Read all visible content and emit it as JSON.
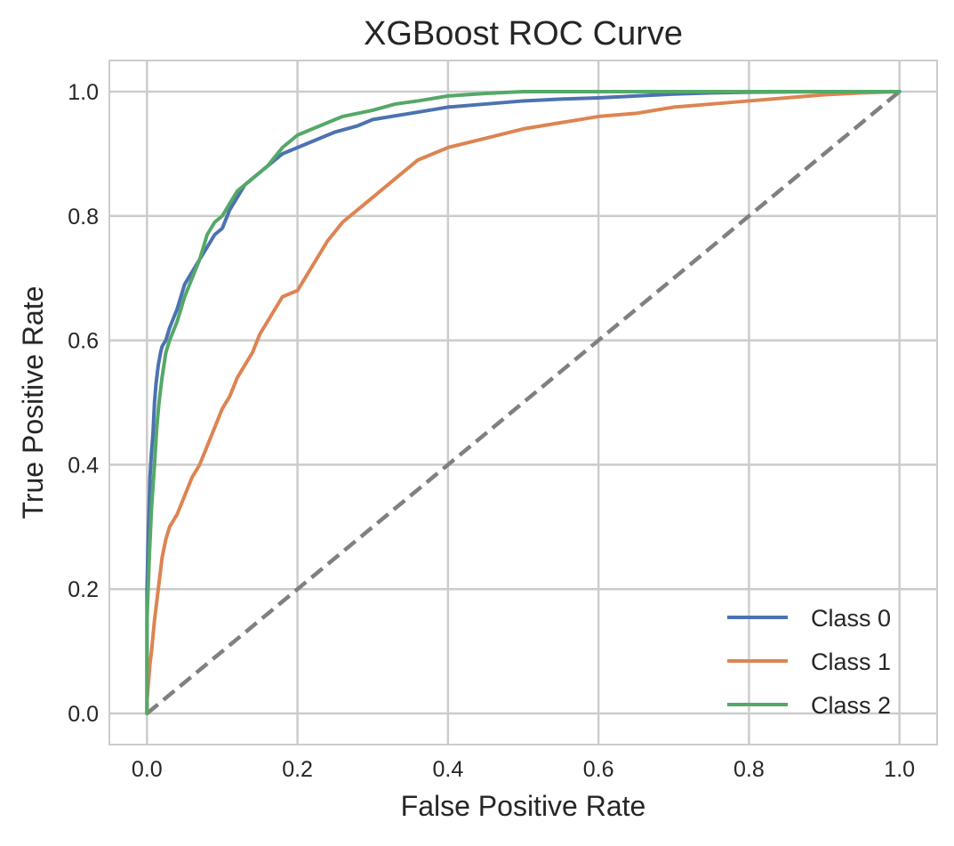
{
  "chart_data": {
    "type": "line",
    "title": "XGBoost ROC Curve",
    "xlabel": "False Positive Rate",
    "ylabel": "True Positive Rate",
    "xlim": [
      -0.05,
      1.05
    ],
    "ylim": [
      -0.05,
      1.05
    ],
    "xticks": [
      0.0,
      0.2,
      0.4,
      0.6,
      0.8,
      1.0
    ],
    "yticks": [
      0.0,
      0.2,
      0.4,
      0.6,
      0.8,
      1.0
    ],
    "xtick_labels": [
      "0.0",
      "0.2",
      "0.4",
      "0.6",
      "0.8",
      "1.0"
    ],
    "ytick_labels": [
      "0.0",
      "0.2",
      "0.4",
      "0.6",
      "0.8",
      "1.0"
    ],
    "grid": true,
    "legend_position": "lower-right",
    "series": [
      {
        "name": "Class 0",
        "color": "#4c72b0",
        "x": [
          0.0,
          0.0,
          0.002,
          0.004,
          0.006,
          0.008,
          0.01,
          0.012,
          0.015,
          0.018,
          0.02,
          0.025,
          0.03,
          0.04,
          0.05,
          0.06,
          0.07,
          0.08,
          0.09,
          0.1,
          0.11,
          0.12,
          0.13,
          0.14,
          0.15,
          0.16,
          0.17,
          0.18,
          0.2,
          0.22,
          0.25,
          0.28,
          0.3,
          0.35,
          0.4,
          0.45,
          0.5,
          0.55,
          0.6,
          0.65,
          0.7,
          0.75,
          0.8,
          0.9,
          1.0
        ],
        "y": [
          0.0,
          0.2,
          0.3,
          0.38,
          0.42,
          0.45,
          0.5,
          0.53,
          0.56,
          0.58,
          0.59,
          0.6,
          0.62,
          0.65,
          0.69,
          0.71,
          0.73,
          0.75,
          0.77,
          0.78,
          0.81,
          0.83,
          0.85,
          0.86,
          0.87,
          0.88,
          0.89,
          0.9,
          0.91,
          0.92,
          0.935,
          0.945,
          0.955,
          0.965,
          0.975,
          0.98,
          0.985,
          0.988,
          0.99,
          0.993,
          0.996,
          0.998,
          0.999,
          1.0,
          1.0
        ]
      },
      {
        "name": "Class 1",
        "color": "#dd8452",
        "x": [
          0.0,
          0.0,
          0.002,
          0.004,
          0.006,
          0.01,
          0.015,
          0.02,
          0.025,
          0.03,
          0.04,
          0.05,
          0.06,
          0.07,
          0.08,
          0.09,
          0.1,
          0.11,
          0.12,
          0.13,
          0.14,
          0.15,
          0.16,
          0.17,
          0.18,
          0.2,
          0.22,
          0.24,
          0.26,
          0.28,
          0.3,
          0.32,
          0.34,
          0.36,
          0.38,
          0.4,
          0.45,
          0.5,
          0.55,
          0.6,
          0.65,
          0.7,
          0.75,
          0.8,
          0.85,
          0.9,
          0.95,
          1.0
        ],
        "y": [
          0.0,
          0.02,
          0.05,
          0.08,
          0.1,
          0.15,
          0.2,
          0.25,
          0.28,
          0.3,
          0.32,
          0.35,
          0.38,
          0.4,
          0.43,
          0.46,
          0.49,
          0.51,
          0.54,
          0.56,
          0.58,
          0.61,
          0.63,
          0.65,
          0.67,
          0.68,
          0.72,
          0.76,
          0.79,
          0.81,
          0.83,
          0.85,
          0.87,
          0.89,
          0.9,
          0.91,
          0.925,
          0.94,
          0.95,
          0.96,
          0.965,
          0.975,
          0.98,
          0.985,
          0.99,
          0.995,
          0.998,
          1.0
        ]
      },
      {
        "name": "Class 2",
        "color": "#55a868",
        "x": [
          0.0,
          0.0,
          0.003,
          0.006,
          0.01,
          0.013,
          0.016,
          0.02,
          0.025,
          0.03,
          0.04,
          0.05,
          0.06,
          0.07,
          0.08,
          0.09,
          0.1,
          0.12,
          0.14,
          0.16,
          0.18,
          0.2,
          0.22,
          0.24,
          0.26,
          0.28,
          0.3,
          0.33,
          0.36,
          0.4,
          0.45,
          0.5,
          0.6,
          0.7,
          0.8,
          1.0
        ],
        "y": [
          0.0,
          0.15,
          0.25,
          0.33,
          0.4,
          0.46,
          0.5,
          0.54,
          0.58,
          0.6,
          0.63,
          0.67,
          0.7,
          0.73,
          0.77,
          0.79,
          0.8,
          0.84,
          0.86,
          0.88,
          0.91,
          0.93,
          0.94,
          0.95,
          0.96,
          0.965,
          0.97,
          0.98,
          0.985,
          0.993,
          0.997,
          1.0,
          1.0,
          1.0,
          1.0,
          1.0
        ]
      }
    ],
    "reference_line": {
      "style": "dashed",
      "color": "#808080",
      "x": [
        0.0,
        1.0
      ],
      "y": [
        0.0,
        1.0
      ]
    }
  }
}
